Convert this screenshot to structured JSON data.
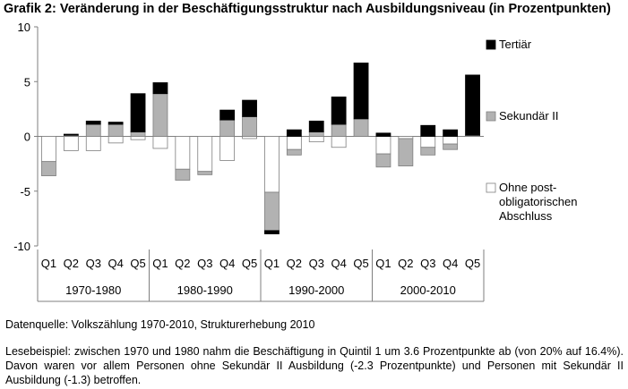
{
  "title": "Grafik 2: Veränderung in der Beschäftigungsstruktur nach Ausbildungsniveau (in Prozentpunkten)",
  "source": "Datenquelle: Volkszählung 1970-2010, Strukturerhebung 2010",
  "example": "Lesebeispiel: zwischen 1970 und 1980 nahm die Beschäftigung in Quintil 1 um 3.6 Prozentpunkte ab (von 20% auf 16.4%). Davon waren vor allem Personen ohne Sekundär II Ausbildung (-2.3 Prozentpunkte) und Personen mit Sekundär II Ausbildung (-1.3) betroffen.",
  "colors": {
    "tertiaer": "#000000",
    "sekundaer": "#b2b2b2",
    "ohne": "#ffffff",
    "outline": "#7f7f7f"
  },
  "chart_data": {
    "type": "bar",
    "stacked": true,
    "title": "Grafik 2: Veränderung in der Beschäftigungsstruktur nach Ausbildungsniveau (in Prozentpunkten)",
    "ylim": [
      -10,
      10
    ],
    "yticks": [
      "10",
      "5",
      "0",
      "-5",
      "-10"
    ],
    "grid": false,
    "legend_position": "right",
    "groups": [
      "1970-1980",
      "1980-1990",
      "1990-2000",
      "2000-2010"
    ],
    "categories": [
      "Q1",
      "Q2",
      "Q3",
      "Q4",
      "Q5"
    ],
    "series": [
      {
        "name": "Tertiär",
        "key": "tertiaer",
        "values": [
          [
            0.0,
            0.1,
            0.3,
            0.2,
            3.5
          ],
          [
            1.0,
            0.0,
            0.0,
            0.9,
            1.5
          ],
          [
            -0.3,
            0.6,
            1.0,
            2.5,
            5.1
          ],
          [
            0.3,
            0.0,
            1.0,
            0.6,
            5.5
          ]
        ]
      },
      {
        "name": "Sekundär II",
        "key": "sekundaer",
        "values": [
          [
            -1.3,
            0.1,
            1.1,
            1.1,
            0.4
          ],
          [
            3.9,
            -1.0,
            -0.3,
            1.5,
            1.8
          ],
          [
            -3.5,
            -0.5,
            0.4,
            1.1,
            1.6
          ],
          [
            -1.2,
            -2.5,
            -0.7,
            -0.5,
            0.1
          ]
        ]
      },
      {
        "name": "Ohne post-obligatorischen Abschluss",
        "key": "ohne",
        "legend_lines": [
          "Ohne post-",
          "obligatorischen",
          "Abschluss"
        ],
        "values": [
          [
            -2.3,
            -1.3,
            -1.3,
            -0.6,
            -0.3
          ],
          [
            -1.1,
            -3.0,
            -3.2,
            -2.2,
            -0.2
          ],
          [
            -5.1,
            -1.2,
            -0.5,
            -1.0,
            0.0
          ],
          [
            -1.6,
            -0.2,
            -1.0,
            -0.7,
            0.0
          ]
        ]
      }
    ]
  }
}
